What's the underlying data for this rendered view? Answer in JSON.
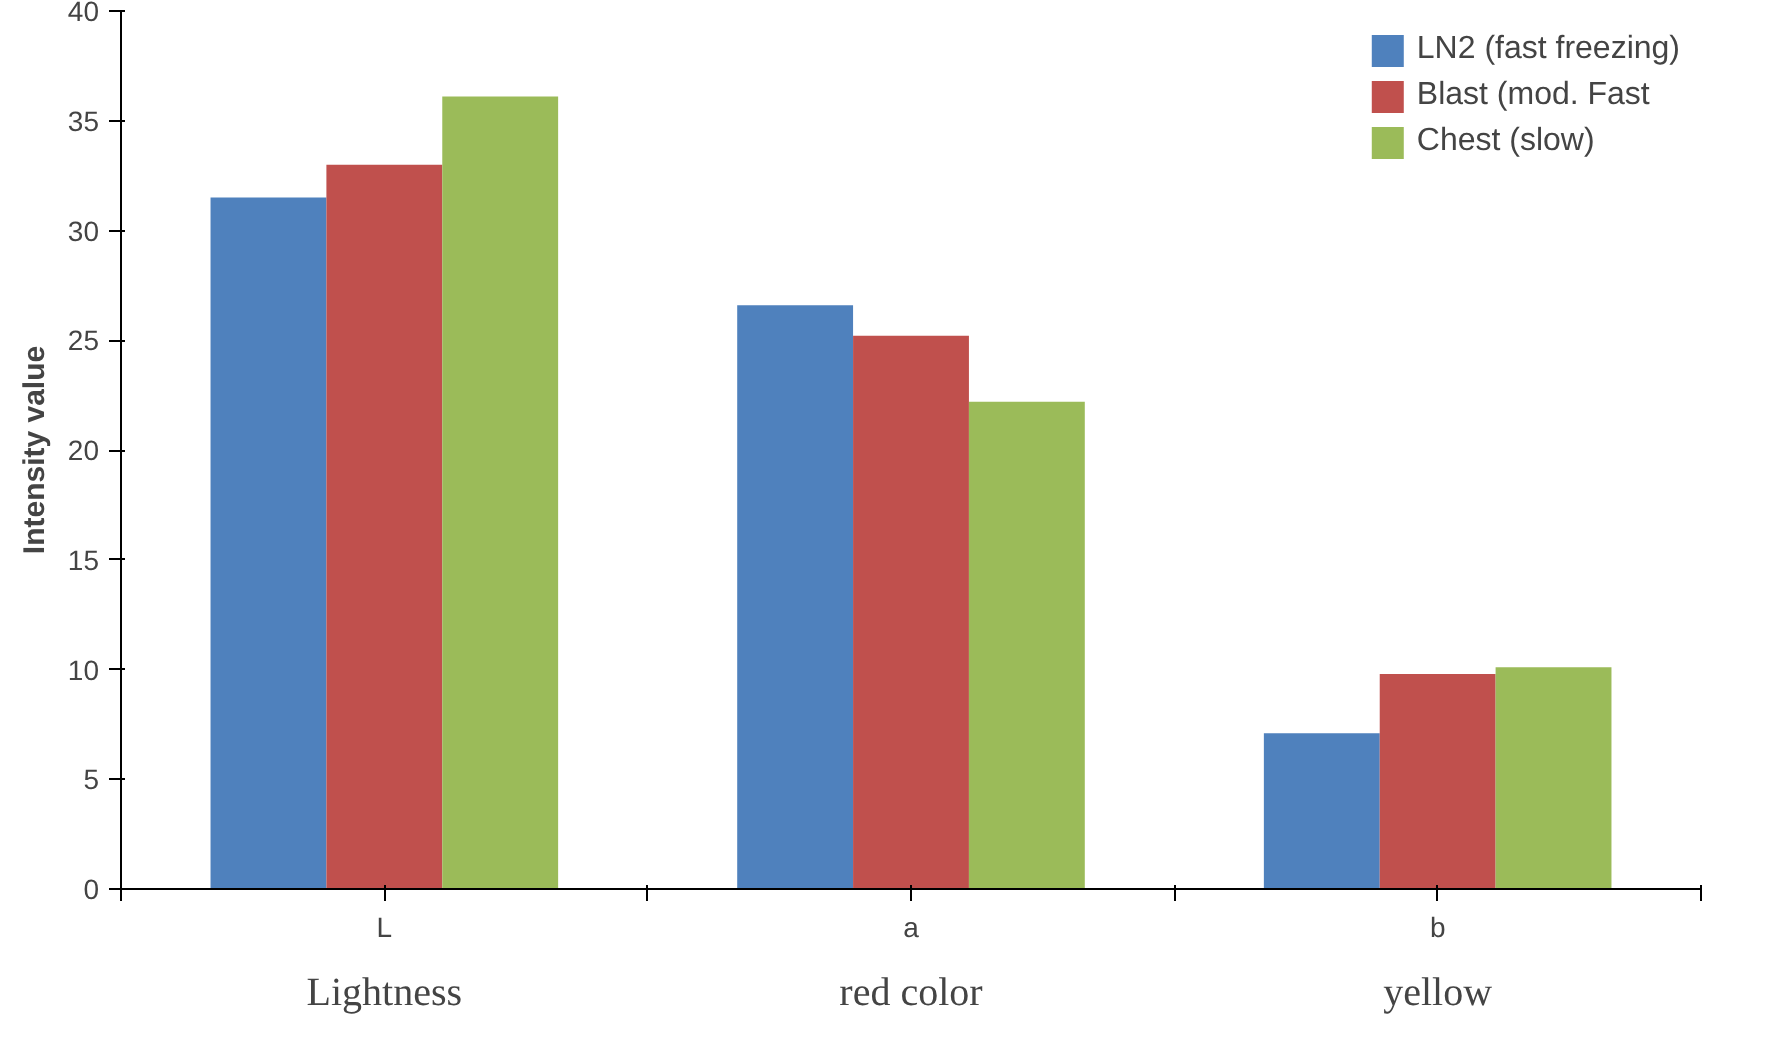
{
  "chart_data": {
    "type": "bar",
    "ylabel": "Intensity value",
    "categories": [
      "L",
      "a",
      "b"
    ],
    "series": [
      {
        "name": "LN2 (fast freezing)",
        "color": "#4f81bd",
        "values": [
          31.5,
          26.6,
          7.1
        ]
      },
      {
        "name": "Blast (mod. Fast",
        "color": "#c0504d",
        "values": [
          33.0,
          25.2,
          9.8
        ]
      },
      {
        "name": "Chest (slow)",
        "color": "#9bbb59",
        "values": [
          36.1,
          22.2,
          10.1
        ]
      }
    ],
    "ylim": [
      0,
      40
    ],
    "yticks": [
      0,
      5,
      10,
      15,
      20,
      25,
      30,
      35,
      40
    ],
    "grid": false,
    "legend": "top right",
    "annotations": [
      "Lightness",
      "red color",
      "yellow"
    ]
  }
}
